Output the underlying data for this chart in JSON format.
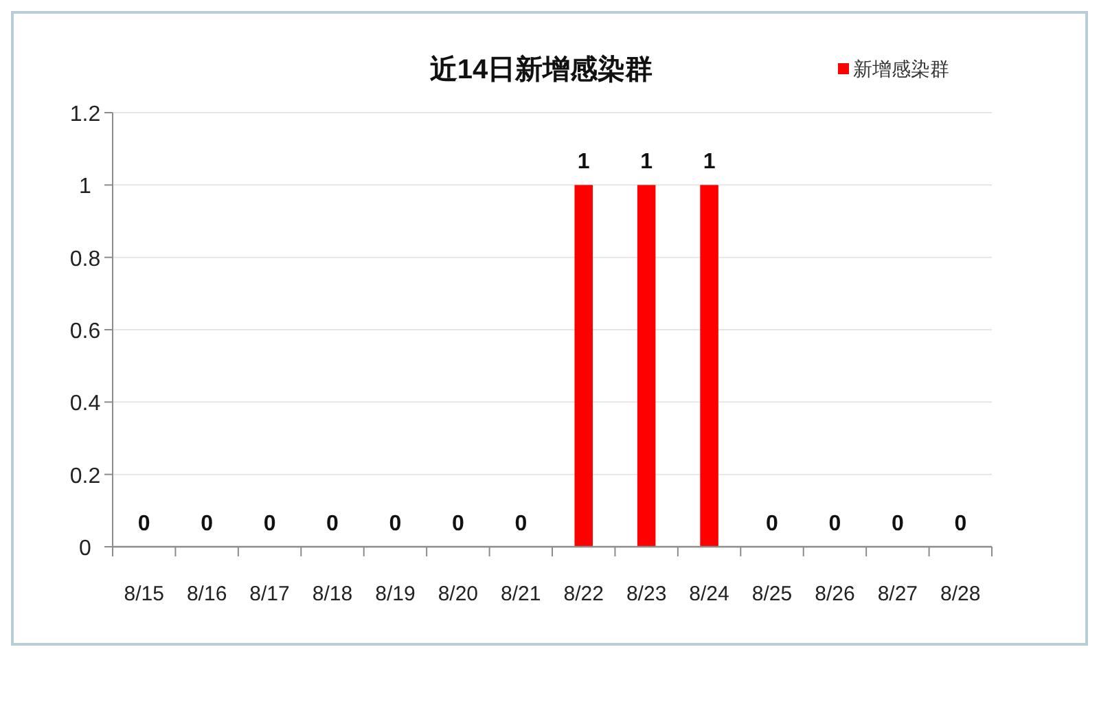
{
  "chart_data": {
    "type": "bar",
    "title": "近14日新增感染群",
    "categories": [
      "8/15",
      "8/16",
      "8/17",
      "8/18",
      "8/19",
      "8/20",
      "8/21",
      "8/22",
      "8/23",
      "8/24",
      "8/25",
      "8/26",
      "8/27",
      "8/28"
    ],
    "series": [
      {
        "name": "新增感染群",
        "color": "#ff0000",
        "values": [
          0,
          0,
          0,
          0,
          0,
          0,
          0,
          1,
          1,
          1,
          0,
          0,
          0,
          0
        ]
      }
    ],
    "ylim": [
      0,
      1.2
    ],
    "yticks": [
      0,
      0.2,
      0.4,
      0.6,
      0.8,
      1,
      1.2
    ],
    "grid": "y",
    "legend": "top right",
    "data_labels": true
  }
}
